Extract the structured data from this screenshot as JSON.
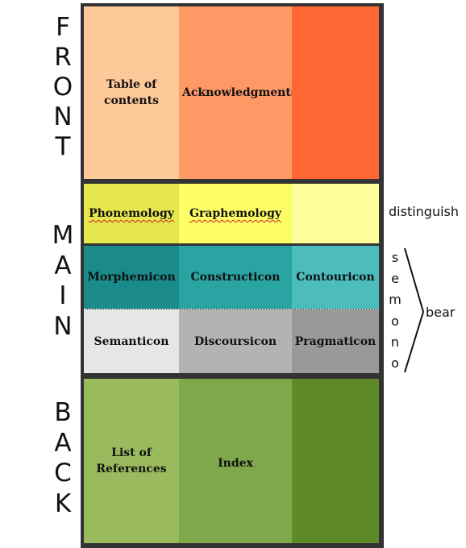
{
  "sections": {
    "front": {
      "label": [
        "F",
        "R",
        "O",
        "N",
        "T"
      ]
    },
    "main": {
      "label": [
        "M",
        "A",
        "I",
        "N"
      ]
    },
    "back": {
      "label": [
        "B",
        "A",
        "C",
        "K"
      ]
    }
  },
  "cells": {
    "table_of_contents": "Table of contents",
    "acknowledgments": "Acknowledgments",
    "phonemology": "Phonemology",
    "graphemology": "Graphemology",
    "morphemicon": "Morphemicon",
    "constructicon": "Constructicon",
    "contouricon": "Contouricon",
    "semanticon": "Semanticon",
    "discoursicon": "Discoursicon",
    "pragmaticon": "Pragmaticon",
    "list_of_references": "List of References",
    "index": "Index"
  },
  "annotations": {
    "distinguish": "distinguish",
    "semono": [
      "s",
      "e",
      "m",
      "o",
      "n",
      "o"
    ],
    "bear": "bear"
  },
  "colors": {
    "front": [
      "#fec999",
      "#fe9966",
      "#fe6633"
    ],
    "phon_row": [
      "#e6e64d",
      "#fdfd66",
      "#fdfd99"
    ],
    "morph_row": [
      "#1a8a8a",
      "#2aa3a3",
      "#4cbcbc"
    ],
    "sem_row": [
      "#e6e6e6",
      "#b3b3b3",
      "#999999"
    ],
    "back": [
      "#99bb5e",
      "#7ea84a",
      "#5f8a2a"
    ]
  }
}
